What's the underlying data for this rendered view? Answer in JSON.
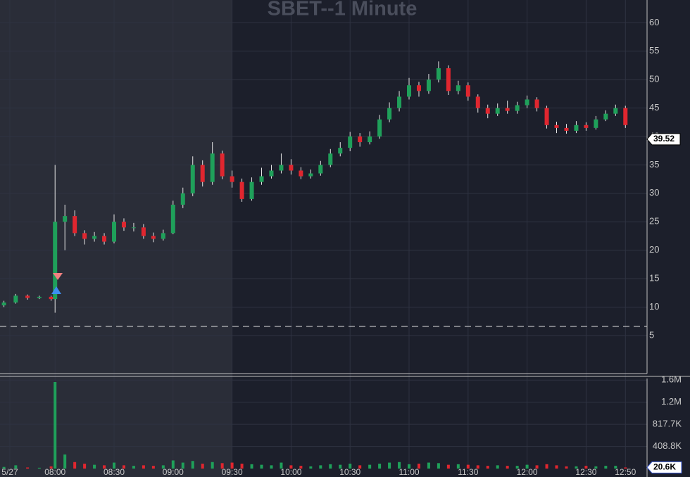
{
  "chart_data": {
    "type": "candlestick",
    "title": "SBET--1 Minute",
    "x": [
      "07:34",
      "07:40",
      "07:46",
      "07:52",
      "07:58",
      "08:00",
      "08:05",
      "08:10",
      "08:15",
      "08:20",
      "08:25",
      "08:30",
      "08:35",
      "08:40",
      "08:45",
      "08:50",
      "08:55",
      "09:00",
      "09:05",
      "09:10",
      "09:15",
      "09:20",
      "09:25",
      "09:30",
      "09:35",
      "09:40",
      "09:45",
      "09:50",
      "09:55",
      "10:00",
      "10:05",
      "10:10",
      "10:15",
      "10:20",
      "10:25",
      "10:30",
      "10:35",
      "10:40",
      "10:45",
      "10:50",
      "10:55",
      "11:00",
      "11:05",
      "11:10",
      "11:15",
      "11:20",
      "11:25",
      "11:30",
      "11:35",
      "11:40",
      "11:45",
      "11:50",
      "11:55",
      "12:00",
      "12:05",
      "12:10",
      "12:15",
      "12:20",
      "12:25",
      "12:30",
      "12:35",
      "12:40",
      "12:45",
      "12:50"
    ],
    "open": [
      10.3,
      10.8,
      12.0,
      11.6,
      11.8,
      11.4,
      25,
      26,
      23,
      22,
      22.5,
      21.5,
      25,
      24,
      24,
      22.5,
      22,
      23,
      28,
      30,
      35,
      32,
      37,
      33,
      32,
      29,
      32,
      33,
      34,
      35,
      34,
      33,
      33.5,
      35,
      37,
      38,
      40,
      39,
      40,
      43,
      45,
      47,
      49,
      48,
      50,
      52,
      48,
      49,
      47,
      45,
      44,
      45,
      44.5,
      45.5,
      46.5,
      45,
      42,
      41.5,
      41,
      42,
      41.5,
      43,
      44,
      45
    ],
    "high": [
      11.1,
      12.3,
      12.2,
      12.0,
      12.0,
      35,
      28,
      27,
      23.5,
      23.2,
      23,
      26.3,
      25.6,
      24.8,
      24.6,
      23.1,
      23.6,
      28.7,
      31,
      36.5,
      35.8,
      39,
      37.5,
      34,
      32.6,
      32.8,
      34.5,
      35,
      37,
      36,
      34.6,
      34.2,
      35.7,
      37.8,
      39,
      40.8,
      40.6,
      40.9,
      43.8,
      46,
      48,
      50.3,
      49.6,
      51,
      53.2,
      52.5,
      49.8,
      49.5,
      47.4,
      45.6,
      45.8,
      46.3,
      46.1,
      47.2,
      46.9,
      45.4,
      42.6,
      42.2,
      42.7,
      42.5,
      43.6,
      44.6,
      45.6,
      45.4
    ],
    "low": [
      10.0,
      10.6,
      11.3,
      11.4,
      11.1,
      9,
      20,
      22.5,
      21,
      21.5,
      21,
      21.2,
      23.4,
      23.3,
      22,
      21.4,
      21.7,
      22.8,
      27.4,
      29.5,
      31.2,
      31.5,
      32.5,
      31,
      28.5,
      28.7,
      31.5,
      32.6,
      33.5,
      33.3,
      32.5,
      32.6,
      33.1,
      34.6,
      36.5,
      37.4,
      38.2,
      38.6,
      39.6,
      42.5,
      44.4,
      46.5,
      47,
      47.5,
      49.5,
      47.3,
      47.4,
      46.3,
      44.2,
      43.2,
      43.6,
      44,
      44,
      45,
      44.4,
      41.4,
      40.6,
      40.5,
      40.6,
      41,
      41.2,
      42.7,
      43.6,
      41.5
    ],
    "close": [
      10.8,
      12.0,
      11.6,
      11.8,
      11.4,
      25,
      26,
      23,
      22,
      22.5,
      21.5,
      25,
      24,
      24,
      22.5,
      22,
      23,
      28,
      30,
      35,
      32,
      37,
      33,
      32,
      29,
      32,
      33,
      34,
      35,
      34,
      33,
      33.5,
      35,
      37,
      38,
      40,
      39,
      40,
      43,
      45,
      47,
      49,
      48,
      50,
      52,
      48,
      49,
      47,
      45,
      44,
      45,
      44.5,
      45.5,
      46.5,
      45,
      42,
      41.5,
      41,
      42,
      41.5,
      43,
      44,
      45,
      42
    ],
    "volume": [
      30000,
      60000,
      20000,
      15000,
      40000,
      1600000,
      260000,
      120000,
      90000,
      70000,
      60000,
      110000,
      60000,
      50000,
      60000,
      50000,
      60000,
      150000,
      110000,
      140000,
      90000,
      120000,
      100000,
      110000,
      90000,
      80000,
      70000,
      60000,
      110000,
      60000,
      50000,
      40000,
      60000,
      80000,
      70000,
      90000,
      60000,
      70000,
      90000,
      110000,
      120000,
      80000,
      90000,
      110000,
      100000,
      70000,
      80000,
      70000,
      60000,
      50000,
      60000,
      50000,
      50000,
      70000,
      60000,
      80000,
      60000,
      40000,
      40000,
      50000,
      40000,
      50000,
      50000,
      20600
    ],
    "volume_value_label": "20.6K",
    "up_color": "#1fa05a",
    "down_color": "#e0262f",
    "last_price": 39.52,
    "reference_line": 6.6,
    "xlim": [
      "07:32",
      "13:01"
    ],
    "xticks": [
      {
        "value": "07:37",
        "label": "5/27"
      },
      "08:00",
      "08:30",
      "09:00",
      "09:30",
      "10:00",
      "10:30",
      "11:00",
      "11:30",
      "12:00",
      "12:30",
      "12:50"
    ],
    "ylim": [
      -1.7,
      64
    ],
    "yticks": [
      5,
      10,
      15,
      20,
      25,
      30,
      35,
      40,
      45,
      50,
      55,
      60
    ],
    "volume_ylim": [
      0,
      1665000
    ],
    "volume_yticks": [
      {
        "value": 408800,
        "label": "408.8K"
      },
      {
        "value": 817700,
        "label": "817.7K"
      },
      {
        "value": 1226500,
        "label": "1.2M"
      },
      {
        "value": 1635300,
        "label": "1.6M"
      }
    ],
    "session_start": "09:30",
    "grid": true
  }
}
